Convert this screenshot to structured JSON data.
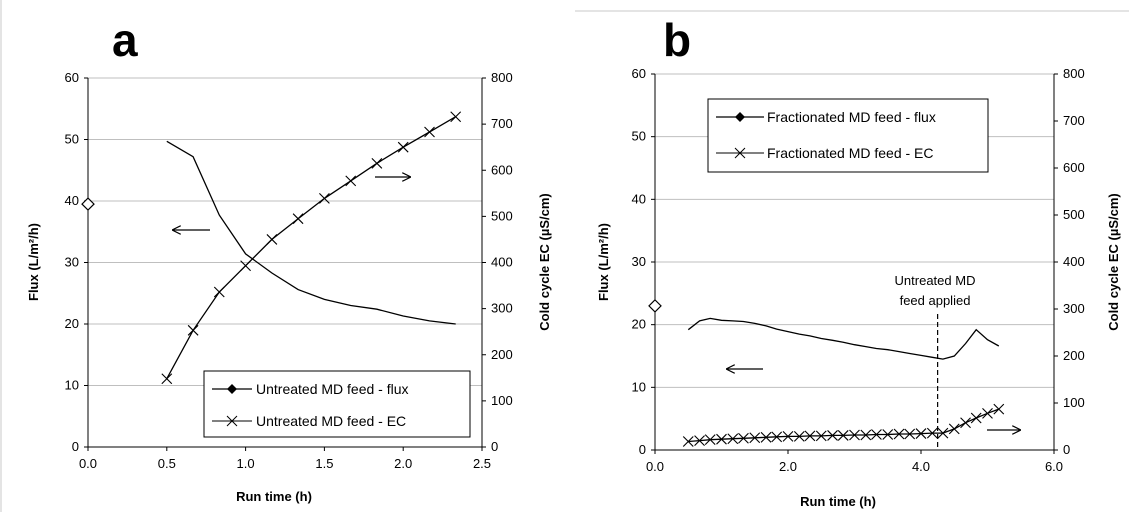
{
  "chart_data": [
    {
      "type": "line",
      "panel_label": "a",
      "xlabel": "Run time (h)",
      "ylabel_left": "Flux (L/m²/h)",
      "ylabel_right": "Cold cycle EC (µS/cm)",
      "xlim": [
        0,
        2.5
      ],
      "ylim_left": [
        0,
        60
      ],
      "ylim_right": [
        0,
        800
      ],
      "x_ticks": [
        "0.0",
        "0.5",
        "1.0",
        "1.5",
        "2.0",
        "2.5"
      ],
      "y_ticks_left": [
        "0",
        "10",
        "20",
        "30",
        "40",
        "50",
        "60"
      ],
      "y_ticks_right": [
        "0",
        "100",
        "200",
        "300",
        "400",
        "500",
        "600",
        "700",
        "800"
      ],
      "grid": "horizontal",
      "legend_position": "bottom-right",
      "series": [
        {
          "name": "Untreated MD feed - flux",
          "axis": "left",
          "marker": "diamond",
          "x": [
            0.5,
            0.667,
            0.833,
            1.0,
            1.167,
            1.333,
            1.5,
            1.667,
            1.833,
            2.0,
            2.167,
            2.333
          ],
          "y": [
            49.7,
            47.2,
            37.7,
            31.4,
            28.3,
            25.6,
            24.0,
            23.0,
            22.4,
            21.3,
            20.5,
            20.0
          ]
        },
        {
          "name": "Untreated MD feed - EC",
          "axis": "right",
          "marker": "x",
          "x": [
            0.5,
            0.667,
            0.833,
            1.0,
            1.167,
            1.333,
            1.5,
            1.667,
            1.833,
            2.0,
            2.167,
            2.333
          ],
          "y": [
            148,
            253,
            336,
            393,
            450,
            495,
            539,
            577,
            615,
            650,
            683,
            716
          ]
        }
      ],
      "extra_points": [
        {
          "marker": "open-diamond",
          "axis": "left",
          "x": 0.0,
          "y": 39.5
        }
      ],
      "arrows": [
        {
          "direction": "left",
          "target_axis": "left"
        },
        {
          "direction": "right",
          "target_axis": "right"
        }
      ]
    },
    {
      "type": "line",
      "panel_label": "b",
      "xlabel": "Run time (h)",
      "ylabel_left": "Flux (L/m²/h)",
      "ylabel_right": "Cold cycle EC (µS/cm)",
      "xlim": [
        0,
        6
      ],
      "ylim_left": [
        0,
        60
      ],
      "ylim_right": [
        0,
        800
      ],
      "x_ticks": [
        "0.0",
        "2.0",
        "4.0",
        "6.0"
      ],
      "y_ticks_left": [
        "0",
        "10",
        "20",
        "30",
        "40",
        "50",
        "60"
      ],
      "y_ticks_right": [
        "0",
        "100",
        "200",
        "300",
        "400",
        "500",
        "600",
        "700",
        "800"
      ],
      "grid": "horizontal",
      "legend_position": "top-left",
      "series": [
        {
          "name": "Fractionated MD feed - flux",
          "axis": "left",
          "marker": "diamond",
          "x": [
            0.5,
            0.67,
            0.83,
            1.0,
            1.17,
            1.33,
            1.5,
            1.67,
            1.83,
            2.0,
            2.17,
            2.33,
            2.5,
            2.67,
            2.83,
            3.0,
            3.17,
            3.33,
            3.5,
            3.67,
            3.83,
            4.0,
            4.17,
            4.33,
            4.5,
            4.67,
            4.83,
            5.0,
            5.17
          ],
          "y": [
            19.2,
            20.6,
            21.0,
            20.7,
            20.6,
            20.5,
            20.2,
            19.8,
            19.3,
            18.9,
            18.5,
            18.2,
            17.8,
            17.5,
            17.2,
            16.8,
            16.5,
            16.2,
            16.0,
            15.7,
            15.4,
            15.1,
            14.8,
            14.5,
            15.0,
            17.0,
            19.2,
            17.6,
            16.6
          ]
        },
        {
          "name": "Fractionated MD feed - EC",
          "axis": "right",
          "marker": "x",
          "x": [
            0.5,
            0.67,
            0.83,
            1.0,
            1.17,
            1.33,
            1.5,
            1.67,
            1.83,
            2.0,
            2.17,
            2.33,
            2.5,
            2.67,
            2.83,
            3.0,
            3.17,
            3.33,
            3.5,
            3.67,
            3.83,
            4.0,
            4.17,
            4.33,
            4.5,
            4.67,
            4.83,
            5.0,
            5.17
          ],
          "y": [
            18,
            20,
            22,
            23,
            24,
            25,
            26,
            27,
            28,
            29,
            29,
            30,
            30,
            31,
            31,
            32,
            32,
            33,
            33,
            34,
            34,
            35,
            36,
            36,
            45,
            58,
            68,
            78,
            87
          ]
        }
      ],
      "extra_points": [
        {
          "marker": "open-diamond",
          "axis": "left",
          "x": 0.0,
          "y": 23.0
        }
      ],
      "vertical_marker": {
        "x": 4.25,
        "style": "dashed",
        "label_lines": [
          "Untreated MD",
          "feed applied"
        ]
      },
      "arrows": [
        {
          "direction": "left",
          "target_axis": "left"
        },
        {
          "direction": "right",
          "target_axis": "right"
        }
      ]
    }
  ]
}
